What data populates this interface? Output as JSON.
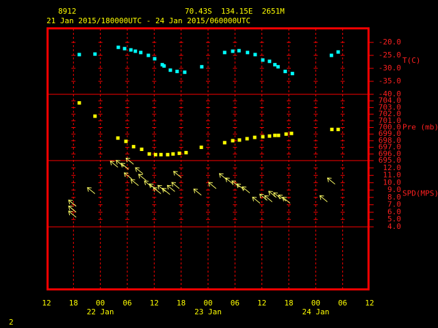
{
  "header": {
    "station": "8912",
    "location": "70.43S  134.15E  2651M",
    "period": "21 Jan 2015/180000UTC - 24 Jan 2015/060000UTC"
  },
  "page_number": "2",
  "chart_data": {
    "type": "panels",
    "xlim": [
      12,
      84
    ],
    "xticks": [
      {
        "value": 12,
        "label": "12"
      },
      {
        "value": 18,
        "label": "18"
      },
      {
        "value": 24,
        "label": "00"
      },
      {
        "value": 30,
        "label": "06"
      },
      {
        "value": 36,
        "label": "12"
      },
      {
        "value": 42,
        "label": "18"
      },
      {
        "value": 48,
        "label": "00"
      },
      {
        "value": 54,
        "label": "06"
      },
      {
        "value": 60,
        "label": "12"
      },
      {
        "value": 66,
        "label": "18"
      },
      {
        "value": 72,
        "label": "00"
      },
      {
        "value": 78,
        "label": "06"
      },
      {
        "value": 84,
        "label": "12"
      }
    ],
    "day_labels": [
      {
        "value": 24,
        "label": "22 Jan"
      },
      {
        "value": 48,
        "label": "23 Jan"
      },
      {
        "value": 72,
        "label": "24 Jan"
      }
    ],
    "panels": [
      {
        "type": "scatter",
        "label": "T(C)",
        "color": "#00ffff",
        "ylim": [
          -40,
          -14.2
        ],
        "yticks": [
          {
            "value": -40,
            "label": "-40.0"
          },
          {
            "value": -35,
            "label": "-35.0"
          },
          {
            "value": -30,
            "label": "-30.0"
          },
          {
            "value": -25,
            "label": "-25.0"
          },
          {
            "value": -20,
            "label": "-20.0"
          }
        ],
        "x": [
          19.3,
          22.8,
          28.0,
          29.4,
          30.8,
          31.8,
          33.0,
          34.7,
          36.1,
          37.8,
          38.2,
          39.6,
          41.1,
          42.8,
          46.6,
          51.7,
          53.5,
          54.9,
          56.8,
          58.5,
          60.2,
          61.7,
          62.9,
          63.6,
          65.2,
          66.8,
          75.5,
          77.0
        ],
        "values": [
          -24.7,
          -24.5,
          -21.9,
          -22.4,
          -22.9,
          -23.4,
          -23.9,
          -25.0,
          -26.3,
          -28.6,
          -29.1,
          -30.7,
          -31.2,
          -31.5,
          -29.4,
          -23.9,
          -23.4,
          -23.2,
          -23.9,
          -24.7,
          -26.8,
          -27.3,
          -28.6,
          -29.4,
          -31.2,
          -32.0,
          -25.0,
          -23.7
        ]
      },
      {
        "type": "scatter",
        "label": "Pre (mb)",
        "color": "#ffff00",
        "ylim": [
          695,
          705
        ],
        "yticks": [
          {
            "value": 695,
            "label": "695.0"
          },
          {
            "value": 696,
            "label": "696.0"
          },
          {
            "value": 697,
            "label": "697.0"
          },
          {
            "value": 698,
            "label": "698.0"
          },
          {
            "value": 699,
            "label": "699.0"
          },
          {
            "value": 700,
            "label": "700.0"
          },
          {
            "value": 701,
            "label": "701.0"
          },
          {
            "value": 702,
            "label": "702.0"
          },
          {
            "value": 703,
            "label": "703.0"
          },
          {
            "value": 704,
            "label": "704.0"
          }
        ],
        "x": [
          19.3,
          22.8,
          27.9,
          29.7,
          31.4,
          33.2,
          34.9,
          36.3,
          37.5,
          39.0,
          40.2,
          41.6,
          43.1,
          46.5,
          51.7,
          53.5,
          55.0,
          56.7,
          58.4,
          60.2,
          61.7,
          62.9,
          63.7,
          65.4,
          66.6,
          75.6,
          77.0
        ],
        "values": [
          703.7,
          701.7,
          698.4,
          697.9,
          697.1,
          696.7,
          696.0,
          695.9,
          695.9,
          695.9,
          696.0,
          696.1,
          696.2,
          697.0,
          697.7,
          698.0,
          698.1,
          698.3,
          698.5,
          698.6,
          698.7,
          698.8,
          698.8,
          699.0,
          699.1,
          699.7,
          699.7
        ]
      },
      {
        "type": "arrows",
        "label": "SPD(MPS)",
        "color": "#ffff66",
        "ylim": [
          4,
          13
        ],
        "yticks": [
          {
            "value": 4,
            "label": "4.0"
          },
          {
            "value": 5,
            "label": "5.0"
          },
          {
            "value": 6,
            "label": "6.0"
          },
          {
            "value": 7,
            "label": "7.0"
          },
          {
            "value": 8,
            "label": "8.0"
          },
          {
            "value": 9,
            "label": "9.0"
          },
          {
            "value": 10,
            "label": "10.0"
          },
          {
            "value": 11,
            "label": "11.0"
          },
          {
            "value": 12,
            "label": "12.0"
          }
        ],
        "x": [
          18.6,
          18.6,
          18.6,
          22.8,
          27.9,
          29.2,
          30.3,
          31.4,
          31.0,
          32.5,
          33.5,
          34.2,
          35.5,
          36.6,
          37.5,
          38.5,
          39.5,
          40.6,
          41.6,
          42.0,
          46.5,
          49.8,
          52.2,
          53.6,
          55.0,
          56.1,
          57.3,
          59.6,
          61.2,
          62.3,
          63.2,
          64.3,
          65.4,
          66.3,
          74.6,
          76.3
        ],
        "values": [
          6.8,
          6.0,
          5.3,
          8.5,
          12.1,
          12.2,
          11.8,
          12.5,
          10.5,
          9.6,
          11.2,
          10.3,
          9.4,
          9.0,
          8.5,
          8.8,
          8.4,
          8.8,
          9.2,
          10.7,
          8.3,
          9.2,
          10.4,
          9.8,
          9.4,
          9.0,
          8.6,
          7.2,
          7.6,
          7.4,
          8.0,
          7.8,
          7.5,
          7.2,
          7.4,
          9.8
        ]
      }
    ]
  }
}
